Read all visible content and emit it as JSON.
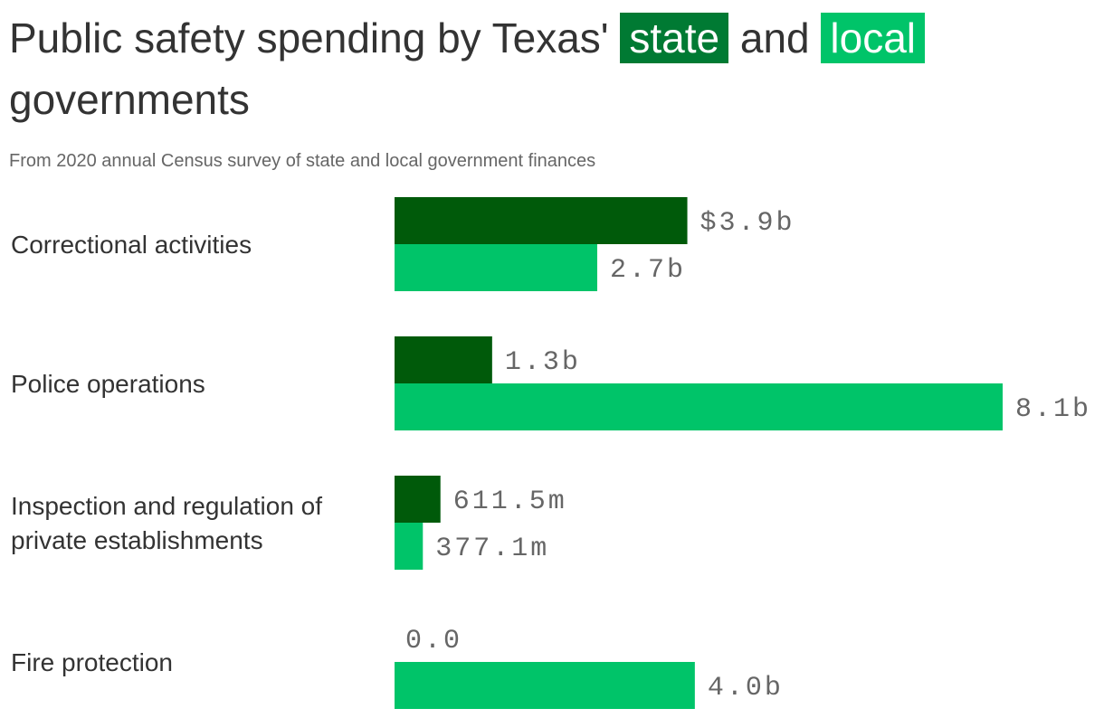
{
  "header": {
    "title_part1": "Public safety spending by Texas'",
    "state_label": "state",
    "title_and": "and",
    "local_label": "local",
    "title_part2": "governments",
    "subtitle": "From 2020 annual Census survey of state and local government finances"
  },
  "colors": {
    "state_bar": "#005a0a",
    "state_legend": "#007a33",
    "local": "#00c469"
  },
  "chart_data": {
    "type": "bar",
    "orientation": "horizontal",
    "categories": [
      [
        "Correctional activities"
      ],
      [
        "Police operations"
      ],
      [
        "Inspection and regulation of",
        "private establishments"
      ],
      [
        "Fire protection"
      ]
    ],
    "series": [
      {
        "name": "state",
        "values": [
          3900000000,
          1300000000,
          611500000,
          0
        ],
        "labels": [
          "$3.9b",
          "1.3b",
          "611.5m",
          "0.0"
        ]
      },
      {
        "name": "local",
        "values": [
          2700000000,
          8100000000,
          377100000,
          4000000000
        ],
        "labels": [
          "2.7b",
          "8.1b",
          "377.1m",
          "4.0b"
        ]
      }
    ],
    "xlim": [
      0,
      8100000000
    ],
    "grid": false
  }
}
